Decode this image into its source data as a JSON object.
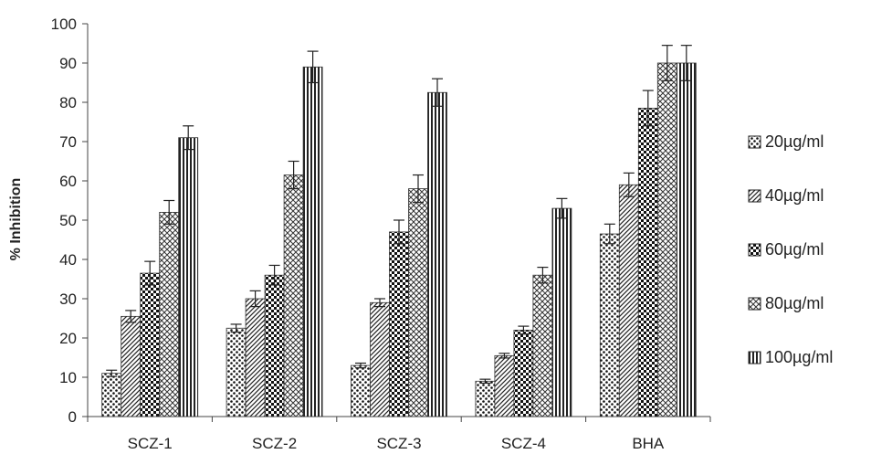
{
  "chart_data": {
    "type": "bar",
    "title": "",
    "xlabel": "",
    "ylabel": "% Inhibition",
    "ylim": [
      0,
      100
    ],
    "yticks": [
      0,
      10,
      20,
      30,
      40,
      50,
      60,
      70,
      80,
      90,
      100
    ],
    "categories": [
      "SCZ-1",
      "SCZ-2",
      "SCZ-3",
      "SCZ-4",
      "BHA"
    ],
    "legend_position": "right",
    "grid": false,
    "series": [
      {
        "name": "20µg/ml",
        "pattern": "dots",
        "values": [
          11,
          22.5,
          13,
          9,
          46.5
        ],
        "errors": [
          0.8,
          1.0,
          0.6,
          0.5,
          2.5
        ]
      },
      {
        "name": "40µg/ml",
        "pattern": "diagonal",
        "values": [
          25.5,
          30,
          29,
          15.5,
          59
        ],
        "errors": [
          1.5,
          2.0,
          1.0,
          0.6,
          3.0
        ]
      },
      {
        "name": "60µg/ml",
        "pattern": "checker",
        "values": [
          36.5,
          36,
          47,
          22,
          78.5
        ],
        "errors": [
          3.0,
          2.5,
          3.0,
          1.0,
          4.5
        ]
      },
      {
        "name": "80µg/ml",
        "pattern": "crosses",
        "values": [
          52,
          61.5,
          58,
          36,
          90
        ],
        "errors": [
          3.0,
          3.5,
          3.5,
          2.0,
          4.5
        ]
      },
      {
        "name": "100µg/ml",
        "pattern": "vertical",
        "values": [
          71,
          89,
          82.5,
          53,
          90
        ],
        "errors": [
          3.0,
          4.0,
          3.5,
          2.5,
          4.5
        ]
      }
    ]
  }
}
